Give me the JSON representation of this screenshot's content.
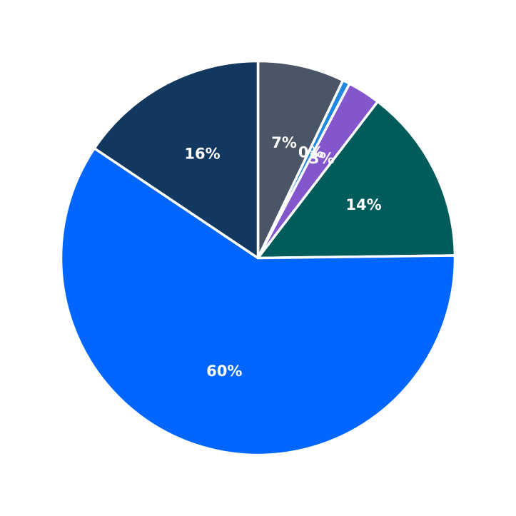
{
  "chart_data": {
    "type": "pie",
    "start_angle_deg": 90,
    "direction": "clockwise",
    "slices": [
      {
        "label": "7%",
        "value": 7.1,
        "color": "#4a5565"
      },
      {
        "label": "0%",
        "value": 0.6,
        "color": "#1f87e0"
      },
      {
        "label": "3%",
        "value": 2.7,
        "color": "#8356cc"
      },
      {
        "label": "14%",
        "value": 14.4,
        "color": "#005c5a"
      },
      {
        "label": "60%",
        "value": 59.6,
        "color": "#0066ff"
      },
      {
        "label": "16%",
        "value": 15.6,
        "color": "#13385f"
      }
    ]
  }
}
